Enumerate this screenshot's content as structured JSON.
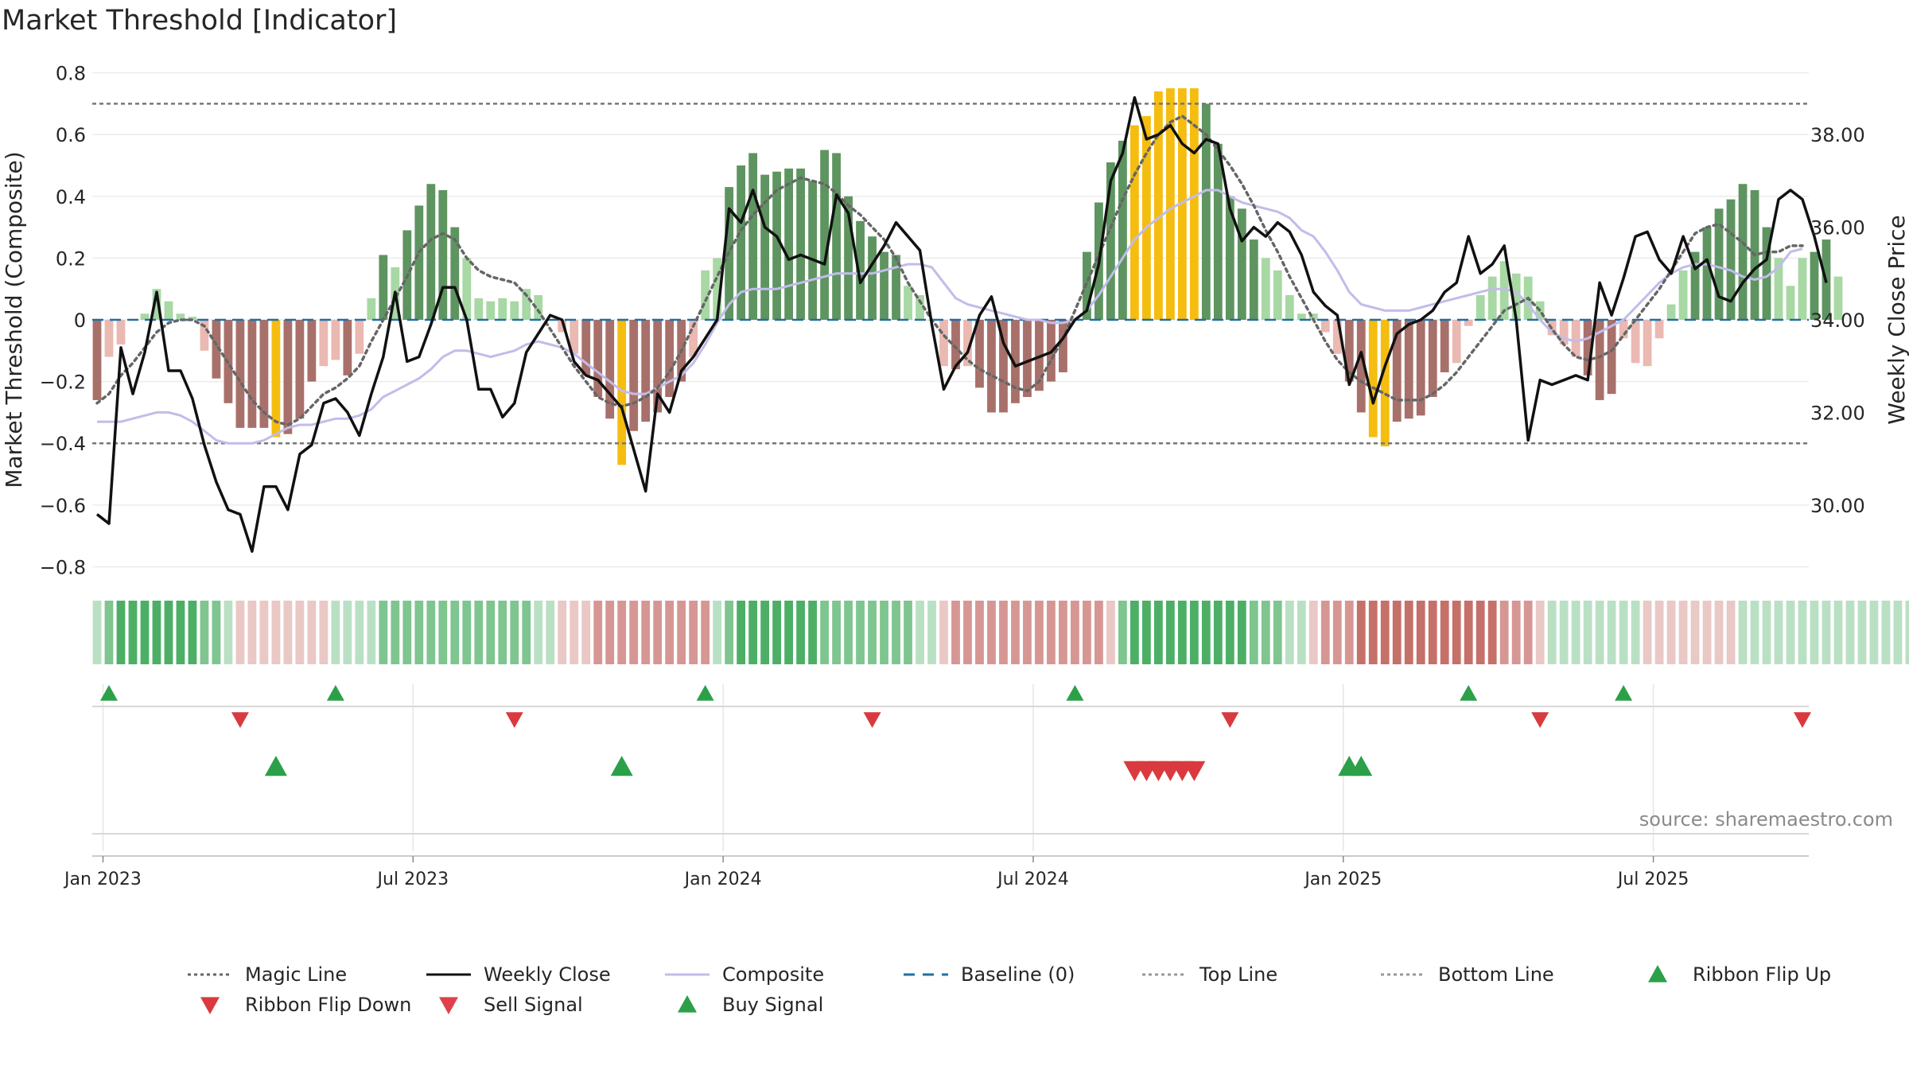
{
  "title": "Market Threshold [Indicator]",
  "source_note": "source: sharemaestro.com",
  "chart_data": {
    "type": "bar",
    "ylabel": "Market Threshold (Composite)",
    "y2label": "Weekly Close Price",
    "ylim": [
      -0.84,
      0.84
    ],
    "y2lim": [
      28.4,
      39.6
    ],
    "yticks": [
      "0.8",
      "0.6",
      "0.4",
      "0.2",
      "0",
      "−0.2",
      "−0.4",
      "−0.6",
      "−0.8"
    ],
    "ytick_values": [
      0.8,
      0.6,
      0.4,
      0.2,
      0,
      -0.2,
      -0.4,
      -0.6,
      -0.8
    ],
    "y2ticks": [
      "38.00",
      "36.00",
      "34.00",
      "32.00",
      "30.00"
    ],
    "y2tick_values": [
      38,
      36,
      34,
      32,
      30
    ],
    "xticks": [
      "Jan 2023",
      "Jul 2023",
      "Jan 2024",
      "Jul 2024",
      "Jan 2025",
      "Jul 2025"
    ],
    "xtick_weeks": [
      0.5,
      26.5,
      52.5,
      78.5,
      104.5,
      130.5
    ],
    "top_line": 0.7,
    "bottom_line": -0.4,
    "colors": {
      "strong_pos": "#5e9460",
      "weak_pos": "#a8d8a4",
      "strong_neg": "#a8706a",
      "weak_neg": "#eab9b2",
      "extreme": "#f5bd10",
      "weekly_close": "#111111",
      "composite": "#c2bcea",
      "magic_line": "#666666",
      "baseline": "#1f6fa8",
      "threshold": "#777777",
      "buy": "#2ca049",
      "sell": "#d93a3f"
    },
    "weeks": 144,
    "bars": [
      -0.26,
      -0.12,
      -0.08,
      0.0,
      0.02,
      0.1,
      0.06,
      0.02,
      0.01,
      -0.1,
      -0.19,
      -0.27,
      -0.35,
      -0.35,
      -0.35,
      -0.38,
      -0.37,
      -0.32,
      -0.2,
      -0.15,
      -0.13,
      -0.18,
      -0.11,
      0.07,
      0.21,
      0.17,
      0.29,
      0.37,
      0.44,
      0.42,
      0.3,
      0.2,
      0.07,
      0.06,
      0.07,
      0.06,
      0.1,
      0.08,
      0.0,
      -0.04,
      -0.11,
      -0.18,
      -0.25,
      -0.32,
      -0.47,
      -0.36,
      -0.33,
      -0.3,
      -0.25,
      -0.2,
      -0.12,
      0.16,
      0.2,
      0.43,
      0.5,
      0.54,
      0.47,
      0.48,
      0.49,
      0.49,
      0.45,
      0.55,
      0.54,
      0.4,
      0.32,
      0.27,
      0.22,
      0.21,
      0.11,
      0.08,
      0.0,
      -0.15,
      -0.16,
      -0.15,
      -0.22,
      -0.3,
      -0.3,
      -0.27,
      -0.25,
      -0.23,
      -0.2,
      -0.17,
      0.0,
      0.22,
      0.38,
      0.51,
      0.58,
      0.63,
      0.66,
      0.74,
      0.75,
      0.75,
      0.75,
      0.7,
      0.57,
      0.4,
      0.36,
      0.26,
      0.2,
      0.16,
      0.08,
      0.02,
      0.02,
      -0.04,
      -0.11,
      -0.2,
      -0.3,
      -0.38,
      -0.41,
      -0.33,
      -0.32,
      -0.31,
      -0.25,
      -0.17,
      -0.14,
      -0.02,
      0.08,
      0.14,
      0.19,
      0.15,
      0.14,
      0.06,
      -0.05,
      -0.08,
      -0.12,
      -0.18,
      -0.26,
      -0.24,
      -0.06,
      -0.14,
      -0.15,
      -0.06,
      0.05,
      0.16,
      0.22,
      0.3,
      0.36,
      0.39,
      0.44,
      0.42,
      0.3,
      0.2,
      0.11,
      0.2,
      0.22,
      0.26,
      0.14
    ],
    "weekly_close": [
      29.8,
      29.6,
      33.4,
      32.4,
      33.3,
      34.6,
      32.9,
      32.9,
      32.3,
      31.3,
      30.5,
      29.9,
      29.8,
      29.0,
      30.4,
      30.4,
      29.9,
      31.1,
      31.3,
      32.2,
      32.3,
      32.0,
      31.5,
      32.4,
      33.2,
      34.6,
      33.1,
      33.2,
      33.9,
      34.7,
      34.7,
      34.0,
      32.5,
      32.5,
      31.9,
      32.2,
      33.3,
      33.7,
      34.1,
      34.0,
      33.1,
      32.8,
      32.7,
      32.4,
      32.1,
      31.2,
      30.3,
      32.4,
      32.0,
      32.9,
      33.2,
      33.6,
      34.0,
      36.4,
      36.1,
      36.8,
      36.0,
      35.8,
      35.3,
      35.4,
      35.3,
      35.2,
      36.7,
      36.3,
      34.8,
      35.2,
      35.6,
      36.1,
      35.8,
      35.5,
      33.9,
      32.5,
      33.0,
      33.3,
      34.1,
      34.5,
      33.5,
      33.0,
      33.1,
      33.2,
      33.3,
      33.6,
      34.0,
      34.2,
      35.2,
      37.0,
      37.6,
      38.8,
      37.9,
      38.0,
      38.2,
      37.8,
      37.6,
      37.9,
      37.8,
      36.4,
      35.7,
      36.0,
      35.8,
      36.1,
      35.9,
      35.4,
      34.6,
      34.3,
      34.1,
      32.6,
      33.3,
      32.2,
      33.0,
      33.7,
      33.9,
      34.0,
      34.2,
      34.6,
      34.8,
      35.8,
      35.0,
      35.2,
      35.6,
      34.0,
      31.4,
      32.7,
      32.6,
      32.7,
      32.8,
      32.7,
      34.8,
      34.1,
      34.9,
      35.8,
      35.9,
      35.3,
      35.0,
      35.8,
      35.1,
      35.3,
      34.5,
      34.4,
      34.8,
      35.1,
      35.3,
      36.6,
      36.8,
      36.6,
      35.8,
      34.8
    ],
    "composite": [
      -0.33,
      -0.33,
      -0.33,
      -0.32,
      -0.31,
      -0.3,
      -0.3,
      -0.31,
      -0.33,
      -0.36,
      -0.39,
      -0.4,
      -0.4,
      -0.4,
      -0.39,
      -0.37,
      -0.35,
      -0.34,
      -0.34,
      -0.33,
      -0.32,
      -0.32,
      -0.31,
      -0.29,
      -0.25,
      -0.23,
      -0.21,
      -0.19,
      -0.16,
      -0.12,
      -0.1,
      -0.1,
      -0.11,
      -0.12,
      -0.11,
      -0.1,
      -0.08,
      -0.07,
      -0.08,
      -0.09,
      -0.11,
      -0.14,
      -0.17,
      -0.2,
      -0.23,
      -0.24,
      -0.24,
      -0.22,
      -0.2,
      -0.18,
      -0.14,
      -0.08,
      -0.01,
      0.05,
      0.09,
      0.1,
      0.1,
      0.1,
      0.11,
      0.12,
      0.13,
      0.14,
      0.15,
      0.15,
      0.15,
      0.15,
      0.16,
      0.17,
      0.18,
      0.18,
      0.17,
      0.12,
      0.07,
      0.05,
      0.04,
      0.03,
      0.02,
      0.01,
      0.0,
      0.0,
      -0.01,
      -0.01,
      0.0,
      0.03,
      0.08,
      0.14,
      0.2,
      0.26,
      0.3,
      0.33,
      0.36,
      0.38,
      0.4,
      0.42,
      0.42,
      0.4,
      0.38,
      0.37,
      0.36,
      0.35,
      0.33,
      0.29,
      0.27,
      0.22,
      0.16,
      0.09,
      0.05,
      0.04,
      0.03,
      0.03,
      0.03,
      0.04,
      0.05,
      0.06,
      0.07,
      0.08,
      0.09,
      0.1,
      0.1,
      0.09,
      0.05,
      0.0,
      -0.04,
      -0.06,
      -0.07,
      -0.06,
      -0.04,
      -0.02,
      0.0,
      0.04,
      0.08,
      0.12,
      0.15,
      0.17,
      0.18,
      0.18,
      0.17,
      0.16,
      0.14,
      0.13,
      0.14,
      0.17,
      0.22,
      0.23
    ],
    "magic_line": [
      -0.27,
      -0.24,
      -0.18,
      -0.14,
      -0.09,
      -0.04,
      -0.01,
      0.0,
      0.0,
      -0.02,
      -0.08,
      -0.14,
      -0.2,
      -0.26,
      -0.3,
      -0.33,
      -0.34,
      -0.32,
      -0.28,
      -0.24,
      -0.22,
      -0.19,
      -0.15,
      -0.07,
      0.0,
      0.07,
      0.14,
      0.22,
      0.26,
      0.28,
      0.26,
      0.2,
      0.16,
      0.14,
      0.13,
      0.12,
      0.08,
      0.03,
      -0.03,
      -0.09,
      -0.15,
      -0.2,
      -0.25,
      -0.27,
      -0.28,
      -0.27,
      -0.25,
      -0.22,
      -0.17,
      -0.1,
      -0.02,
      0.06,
      0.14,
      0.22,
      0.29,
      0.34,
      0.38,
      0.42,
      0.44,
      0.46,
      0.45,
      0.44,
      0.41,
      0.37,
      0.34,
      0.3,
      0.26,
      0.2,
      0.12,
      0.06,
      0.0,
      -0.05,
      -0.09,
      -0.13,
      -0.16,
      -0.18,
      -0.2,
      -0.22,
      -0.23,
      -0.2,
      -0.13,
      -0.06,
      0.03,
      0.12,
      0.21,
      0.3,
      0.39,
      0.47,
      0.54,
      0.6,
      0.64,
      0.66,
      0.63,
      0.6,
      0.55,
      0.5,
      0.44,
      0.37,
      0.29,
      0.22,
      0.14,
      0.07,
      0.0,
      -0.07,
      -0.13,
      -0.17,
      -0.2,
      -0.22,
      -0.24,
      -0.26,
      -0.26,
      -0.26,
      -0.24,
      -0.21,
      -0.17,
      -0.12,
      -0.07,
      -0.02,
      0.03,
      0.05,
      0.07,
      0.03,
      -0.03,
      -0.08,
      -0.12,
      -0.13,
      -0.12,
      -0.1,
      -0.05,
      0.0,
      0.05,
      0.1,
      0.16,
      0.22,
      0.28,
      0.3,
      0.31,
      0.28,
      0.25,
      0.21,
      0.22,
      0.22,
      0.24,
      0.24
    ],
    "extreme_weeks": [
      15,
      44,
      87,
      88,
      89,
      90,
      91,
      92,
      107,
      108
    ],
    "ribbon": [
      1,
      2,
      3,
      3,
      3,
      3,
      3,
      3,
      3,
      2,
      2,
      1,
      -1,
      -1,
      -1,
      -1,
      -1,
      -1,
      -1,
      -1,
      1,
      1,
      1,
      1,
      2,
      2,
      2,
      2,
      2,
      2,
      2,
      2,
      2,
      2,
      2,
      2,
      2,
      1,
      1,
      -1,
      -1,
      -1,
      -2,
      -2,
      -2,
      -2,
      -2,
      -2,
      -2,
      -2,
      -2,
      -2,
      1,
      2,
      3,
      3,
      3,
      3,
      3,
      3,
      3,
      2,
      2,
      2,
      2,
      2,
      2,
      2,
      2,
      1,
      1,
      -1,
      -2,
      -2,
      -2,
      -2,
      -2,
      -2,
      -2,
      -2,
      -2,
      -2,
      -2,
      -2,
      -2,
      -1,
      2,
      3,
      3,
      3,
      3,
      3,
      3,
      3,
      3,
      3,
      3,
      2,
      2,
      2,
      1,
      1,
      -1,
      -2,
      -2,
      -2,
      -3,
      -3,
      -3,
      -3,
      -3,
      -3,
      -3,
      -3,
      -3,
      -3,
      -3,
      -3,
      -2,
      -2,
      -2,
      -1,
      1,
      1,
      1,
      1,
      1,
      1,
      1,
      1,
      -1,
      -1,
      -1,
      -1,
      -1,
      -1,
      -1,
      -1,
      1,
      1,
      1,
      1,
      1,
      1,
      1,
      1,
      1,
      1,
      1,
      1,
      1,
      1,
      1,
      1,
      1,
      -1
    ],
    "ribbon_flip_up": [
      1,
      20,
      51,
      82,
      115,
      128
    ],
    "ribbon_flip_down": [
      12,
      35,
      65,
      95,
      121,
      143
    ],
    "buy_signal": [
      15,
      44,
      105,
      106
    ],
    "sell_signal": [
      87,
      88,
      89,
      90,
      91,
      92
    ],
    "legend": [
      {
        "label": "Magic Line",
        "kind": "dotted-line",
        "color": "#666666"
      },
      {
        "label": "Weekly Close",
        "kind": "line",
        "color": "#111111"
      },
      {
        "label": "Composite",
        "kind": "line",
        "color": "#c2bcea"
      },
      {
        "label": "Baseline (0)",
        "kind": "dashed-line",
        "color": "#1f6fa8"
      },
      {
        "label": "Top Line",
        "kind": "dotted-line",
        "color": "#999999"
      },
      {
        "label": "Bottom Line",
        "kind": "dotted-line",
        "color": "#999999"
      },
      {
        "label": "Ribbon Flip Up",
        "kind": "triangle-up",
        "color": "#2ca049"
      },
      {
        "label": "Ribbon Flip Down",
        "kind": "triangle-down",
        "color": "#d93a3f"
      },
      {
        "label": "Sell Signal",
        "kind": "triangle-down",
        "color": "#e0404a"
      },
      {
        "label": "Buy Signal",
        "kind": "triangle-up",
        "color": "#2ca049"
      }
    ]
  }
}
